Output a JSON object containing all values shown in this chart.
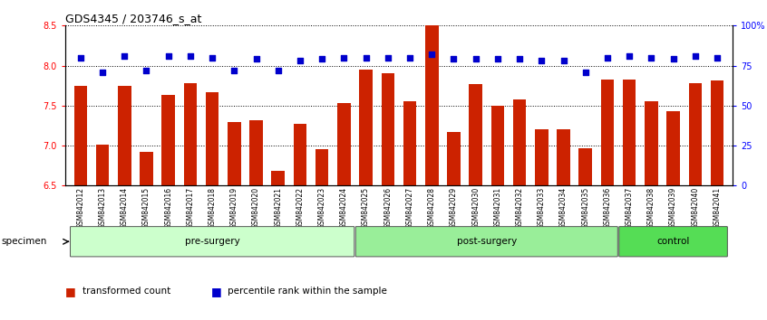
{
  "title": "GDS4345 / 203746_s_at",
  "categories": [
    "GSM842012",
    "GSM842013",
    "GSM842014",
    "GSM842015",
    "GSM842016",
    "GSM842017",
    "GSM842018",
    "GSM842019",
    "GSM842020",
    "GSM842021",
    "GSM842022",
    "GSM842023",
    "GSM842024",
    "GSM842025",
    "GSM842026",
    "GSM842027",
    "GSM842028",
    "GSM842029",
    "GSM842030",
    "GSM842031",
    "GSM842032",
    "GSM842033",
    "GSM842034",
    "GSM842035",
    "GSM842036",
    "GSM842037",
    "GSM842038",
    "GSM842039",
    "GSM842040",
    "GSM842041"
  ],
  "bar_values": [
    7.75,
    7.01,
    7.75,
    6.92,
    7.63,
    7.78,
    7.67,
    7.3,
    7.32,
    6.68,
    7.27,
    6.95,
    7.53,
    7.95,
    7.9,
    7.55,
    8.5,
    7.17,
    7.77,
    7.5,
    7.58,
    7.2,
    7.2,
    6.97,
    7.83,
    7.83,
    7.55,
    7.43,
    7.78,
    7.82
  ],
  "percentile_values": [
    80,
    71,
    81,
    72,
    81,
    81,
    80,
    72,
    79,
    72,
    78,
    79,
    80,
    80,
    80,
    80,
    82,
    79,
    79,
    79,
    79,
    78,
    78,
    71,
    80,
    81,
    80,
    79,
    81,
    80
  ],
  "bar_color": "#cc2200",
  "percentile_color": "#0000cc",
  "ylim_left": [
    6.5,
    8.5
  ],
  "ylim_right": [
    0,
    100
  ],
  "yticks_left": [
    6.5,
    7.0,
    7.5,
    8.0,
    8.5
  ],
  "yticks_right": [
    0,
    25,
    50,
    75,
    100
  ],
  "ytick_labels_right": [
    "0",
    "25",
    "50",
    "75",
    "100%"
  ],
  "groups": [
    {
      "label": "pre-surgery",
      "start": 0,
      "end": 13,
      "color": "#ccffcc"
    },
    {
      "label": "post-surgery",
      "start": 13,
      "end": 25,
      "color": "#99ee99"
    },
    {
      "label": "control",
      "start": 25,
      "end": 30,
      "color": "#55dd55"
    }
  ],
  "specimen_label": "specimen",
  "legend_items": [
    {
      "label": "transformed count",
      "color": "#cc2200"
    },
    {
      "label": "percentile rank within the sample",
      "color": "#0000cc"
    }
  ],
  "grid_color": "black",
  "grid_style": "dotted",
  "bar_width": 0.6
}
